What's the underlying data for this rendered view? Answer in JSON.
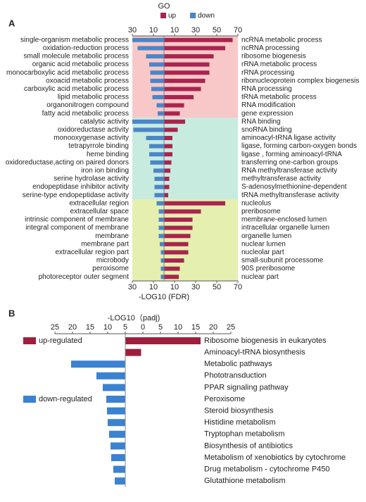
{
  "chart_data": [
    {
      "type": "mirrored_bar",
      "label": "A",
      "title": "GO",
      "xlabel": "-LOG10 (FDR)",
      "xlim": [
        -30,
        70
      ],
      "xticks": [
        {
          "value": -30,
          "label": "30"
        },
        {
          "value": -10,
          "label": "10"
        },
        10,
        30,
        50,
        70
      ],
      "series": [
        {
          "name": "up",
          "color": "#a8254f",
          "categories": [
            "ncRNA metabolic process",
            "ncRNA processing",
            "ribosome biogenesis",
            "rRNA metabolic process",
            "rRNA processing",
            "ribonucleoprotein complex biogenesis",
            "RNA processing",
            "tRNA metabolic process",
            "RNA modification",
            "gene expression",
            "RNA binding",
            "snoRNA binding",
            "aminoacyl-tRNA ligase activity",
            "ligase, forming carbon-oxygen bonds",
            "ligase , forming aminoacyl-tRNA",
            "transferring one-carbon groups",
            "RNA methyltransferase activity",
            "methyltransferase activity",
            "S-adenosylmethionine-dependent",
            "tRNA methyltransferase activity",
            "nucleolus",
            "preribosome",
            "membrane-enclosed lumen",
            "intracellular organelle lumen",
            "organelle lumen",
            "nuclear lumen",
            "nucleolar part",
            "small-subunit processome",
            "90S preribosome",
            "nuclear part"
          ],
          "values": [
            65,
            58,
            47,
            43,
            43,
            39,
            35,
            28,
            19,
            15,
            20,
            13,
            8,
            8,
            8,
            7,
            6,
            5,
            5,
            4,
            58,
            35,
            27,
            27,
            25,
            23,
            23,
            19,
            15,
            14
          ]
        },
        {
          "name": "down",
          "color": "#4a86c6",
          "categories": [
            "single-organism metabolic process",
            "oxidation-reduction process",
            "small molecule metabolic process",
            "organic acid metabolic process",
            "monocarboxylic acid metabolic process",
            "oxoacid metabolic process",
            "carboxylic acid metabolic process",
            "lipid metabolic process",
            "organonitrogen compound",
            "fatty acid metabolic process",
            "catalytic activity",
            "oxidoreductase activity",
            "monooxygenase activity",
            "tetrapyrrole binding",
            "heme binding",
            "oxidoreductase,acting on paired donors",
            "iron ion binding",
            "serine hydrolase activity",
            "endopeptidase inhibitor activity",
            "serine-type endopeptidase activity",
            "extracellular region",
            "extracellular space",
            "intrinsic component of membrane",
            "integral component of membrane",
            "membrane",
            "membrane part",
            "extracellular region part",
            "microbody",
            "peroxisome",
            "photoreceptor outer segment"
          ],
          "values": [
            -30,
            -25,
            -17,
            -14,
            -13,
            -13,
            -12,
            -11,
            -7,
            -6,
            -30,
            -29,
            -17,
            -14,
            -14,
            -13,
            -10,
            -9,
            -9,
            -9,
            -7,
            -5,
            -5,
            -5,
            -5,
            -4,
            -3,
            -3,
            -3,
            -3
          ]
        }
      ]
    },
    {
      "type": "offset_bar",
      "label": "B",
      "xlabel": "-LOG10（padj)",
      "xlim": [
        -25,
        25
      ],
      "xticks": [
        {
          "value": -25,
          "label": "25"
        },
        {
          "value": -20,
          "label": "20"
        },
        {
          "value": -15,
          "label": "15"
        },
        {
          "value": -10,
          "label": "10"
        },
        {
          "value": -5,
          "label": "5"
        },
        0,
        5,
        10,
        15,
        20,
        25
      ],
      "baseline": -5,
      "legend": [
        {
          "name": "up-regulated",
          "color": "#9e1f3d"
        },
        {
          "name": "down-regulated",
          "color": "#3b82d0"
        }
      ],
      "categories": [
        "Ribosome biogenesis in eukaryotes",
        "Aminoacyl-tRNA biosynthesis",
        "Metabolic pathways",
        "Phototransduction",
        "PPAR signaling pathway",
        "Peroxisome",
        "Steroid biosynthesis",
        "Histidine metabolism",
        "Tryptophan metabolism",
        "Biosynthesis of antibiotics",
        "Metabolism of xenobiotics by cytochrome",
        "Drug metabolism - cytochrome P450",
        "Glutathione metabolism"
      ],
      "values": [
        16.4,
        -0.5,
        -20.4,
        -13.2,
        -11.4,
        -10.4,
        -10.2,
        -10,
        -9.6,
        -9.2,
        -9,
        -8.4,
        -8
      ]
    }
  ]
}
